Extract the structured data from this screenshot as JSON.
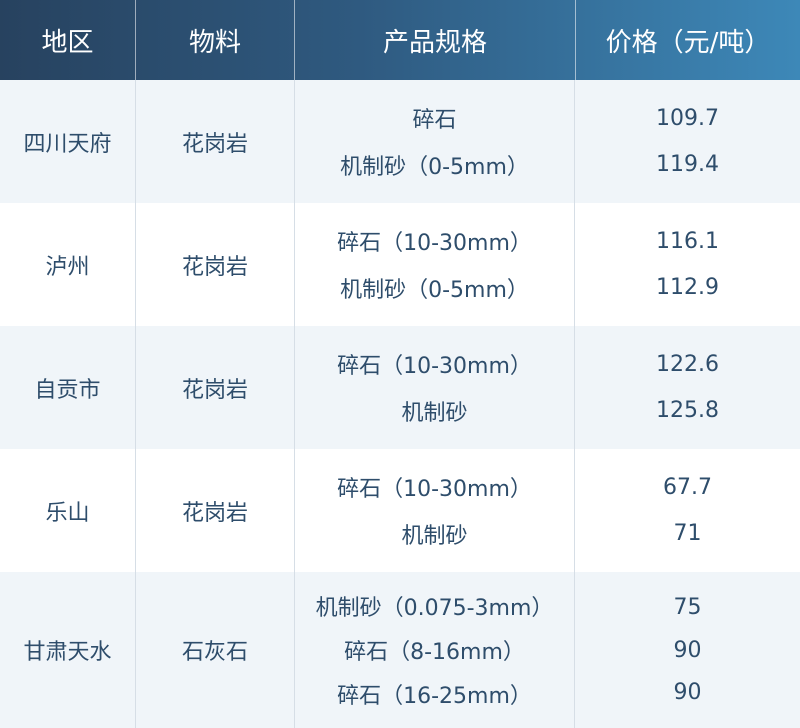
{
  "header": {
    "region": "地区",
    "material": "物料",
    "spec": "产品规格",
    "price": "价格（元/吨）"
  },
  "colors": {
    "header_start": "#27425f",
    "header_end": "#3d88b8",
    "text": "#2e4d6b",
    "alt_row": "#f0f5f9"
  },
  "rows": [
    {
      "region": "四川天府",
      "material": "花岗岩",
      "items": [
        {
          "spec": "碎石",
          "price": "109.7"
        },
        {
          "spec": "机制砂（0-5mm）",
          "price": "119.4"
        }
      ]
    },
    {
      "region": "泸州",
      "material": "花岗岩",
      "items": [
        {
          "spec": "碎石（10-30mm）",
          "price": "116.1"
        },
        {
          "spec": "机制砂（0-5mm）",
          "price": "112.9"
        }
      ]
    },
    {
      "region": "自贡市",
      "material": "花岗岩",
      "items": [
        {
          "spec": "碎石（10-30mm）",
          "price": "122.6"
        },
        {
          "spec": "机制砂",
          "price": "125.8"
        }
      ]
    },
    {
      "region": "乐山",
      "material": "花岗岩",
      "items": [
        {
          "spec": "碎石（10-30mm）",
          "price": "67.7"
        },
        {
          "spec": "机制砂",
          "price": "71"
        }
      ]
    },
    {
      "region": "甘肃天水",
      "material": "石灰石",
      "items": [
        {
          "spec": "机制砂（0.075-3mm）",
          "price": "75"
        },
        {
          "spec": "碎石（8-16mm）",
          "price": "90"
        },
        {
          "spec": "碎石（16-25mm）",
          "price": "90"
        }
      ]
    }
  ]
}
